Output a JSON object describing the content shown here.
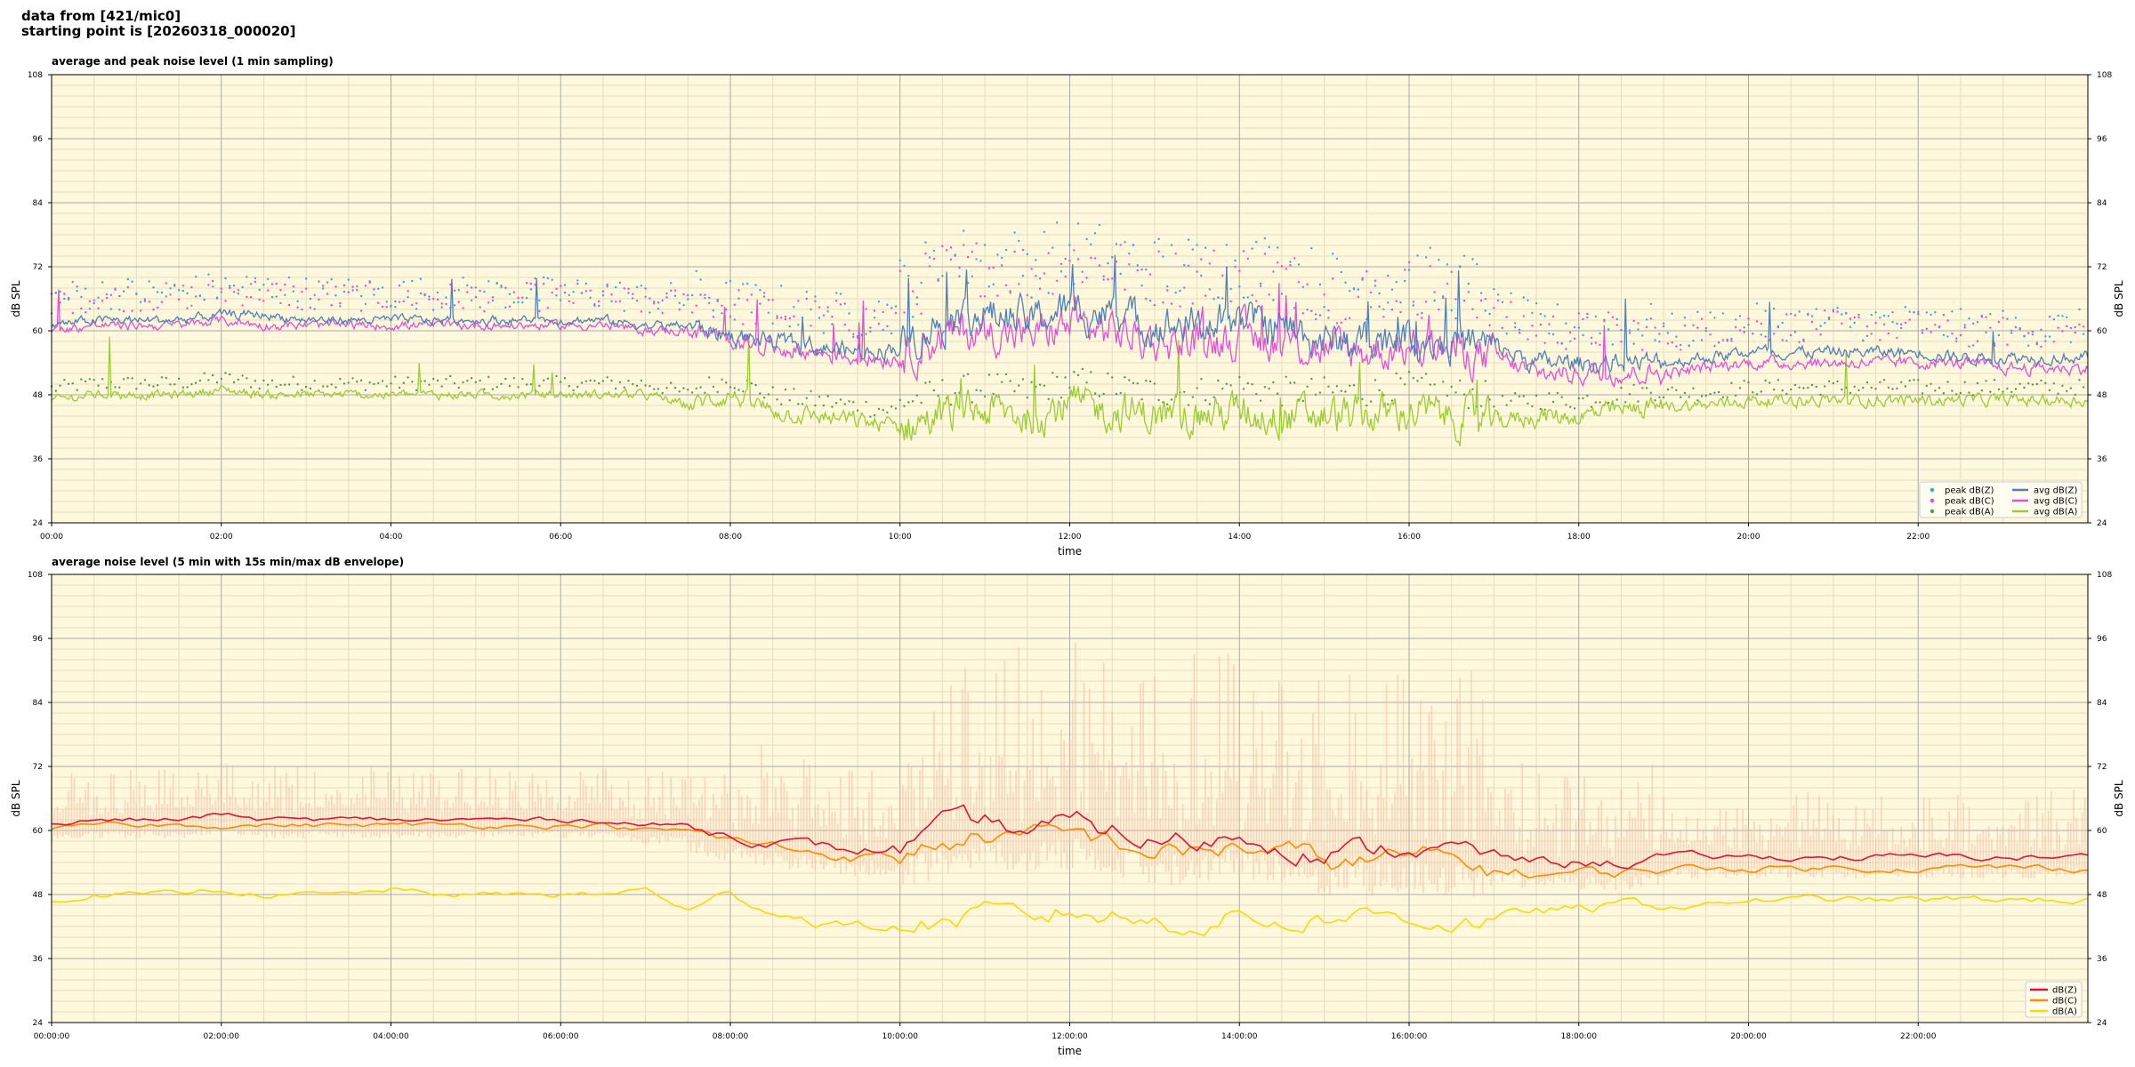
{
  "header": {
    "line1": "data from [421/mic0]",
    "line2": "starting point is [20260318_000020]"
  },
  "colors": {
    "plot_bg": "#fff8dc",
    "grid_major": "#aaaaaa",
    "grid_minor": "#e6dcc0",
    "z": "#4f81b8",
    "c": "#e24fd8",
    "a": "#9acd32",
    "peak_z": "#2aa9e0",
    "peak_c": "#ff3fd0",
    "peak_a": "#4e9a4e",
    "lower_z": "#dc143c",
    "lower_c": "#ff8c00",
    "lower_a": "#ffd700",
    "envelope": "#f4b8a0"
  },
  "chart_data": [
    {
      "type": "line",
      "title": "average and peak noise level (1 min sampling)",
      "xlabel": "time",
      "ylabel": "dB SPL",
      "ylim": [
        24,
        108
      ],
      "xlim_hours": [
        0,
        24
      ],
      "y_ticks": [
        "24",
        "36",
        "48",
        "60",
        "72",
        "84",
        "96",
        "108"
      ],
      "x_ticks": [
        "00:00",
        "02:00",
        "04:00",
        "06:00",
        "08:00",
        "10:00",
        "12:00",
        "14:00",
        "16:00",
        "18:00",
        "20:00",
        "22:00"
      ],
      "grid": true,
      "legend_position": "lower-right",
      "legend": [
        "peak dB(Z)",
        "peak dB(C)",
        "peak dB(A)",
        "avg dB(Z)",
        "avg dB(C)",
        "avg dB(A)"
      ],
      "series": [
        {
          "name": "avg dB(Z)",
          "color_key": "z",
          "x": [
            0,
            0.5,
            1,
            1.5,
            2,
            2.5,
            3,
            3.5,
            4,
            4.5,
            5,
            5.5,
            6,
            6.5,
            7,
            7.5,
            8,
            8.5,
            9,
            9.5,
            10,
            10.5,
            11,
            11.5,
            12,
            12.5,
            13,
            13.5,
            14,
            14.5,
            15,
            15.5,
            16,
            16.5,
            17,
            17.5,
            18,
            18.5,
            19,
            19.5,
            20,
            20.5,
            21,
            21.5,
            22,
            22.5,
            23,
            23.5,
            24
          ],
          "y": [
            61,
            62,
            62,
            62,
            63,
            63,
            62,
            62,
            62,
            62,
            62,
            62,
            62,
            62,
            61,
            61,
            59,
            58,
            57,
            56,
            57,
            62,
            63,
            62,
            64,
            63,
            61,
            61,
            62,
            61,
            58,
            58,
            59,
            58,
            57,
            54,
            54,
            54,
            54,
            55,
            56,
            56,
            56,
            56,
            56,
            55,
            55,
            55,
            55
          ]
        },
        {
          "name": "avg dB(C)",
          "color_key": "c",
          "x": [
            0,
            0.5,
            1,
            1.5,
            2,
            2.5,
            3,
            3.5,
            4,
            4.5,
            5,
            5.5,
            6,
            6.5,
            7,
            7.5,
            8,
            8.5,
            9,
            9.5,
            10,
            10.5,
            11,
            11.5,
            12,
            12.5,
            13,
            13.5,
            14,
            14.5,
            15,
            15.5,
            16,
            16.5,
            17,
            17.5,
            18,
            18.5,
            19,
            19.5,
            20,
            20.5,
            21,
            21.5,
            22,
            22.5,
            23,
            23.5,
            24
          ],
          "y": [
            60,
            61,
            61,
            61,
            62,
            61,
            61,
            61,
            61,
            61,
            61,
            61,
            61,
            61,
            60,
            60,
            58,
            57,
            56,
            55,
            55,
            59,
            60,
            59,
            61,
            60,
            58,
            58,
            59,
            58,
            56,
            56,
            57,
            56,
            55,
            52,
            52,
            52,
            52,
            53,
            54,
            54,
            54,
            54,
            54,
            54,
            53,
            53,
            53
          ]
        },
        {
          "name": "avg dB(A)",
          "color_key": "a",
          "x": [
            0,
            0.5,
            1,
            1.5,
            2,
            2.5,
            3,
            3.5,
            4,
            4.5,
            5,
            5.5,
            6,
            6.5,
            7,
            7.5,
            8,
            8.5,
            9,
            9.5,
            10,
            10.5,
            11,
            11.5,
            12,
            12.5,
            13,
            13.5,
            14,
            14.5,
            15,
            15.5,
            16,
            16.5,
            17,
            17.5,
            18,
            18.5,
            19,
            19.5,
            20,
            20.5,
            21,
            21.5,
            22,
            22.5,
            23,
            23.5,
            24
          ],
          "y": [
            47,
            48,
            48,
            48,
            49,
            48,
            48,
            48,
            48,
            48,
            48,
            48,
            48,
            48,
            48,
            46,
            48,
            45,
            44,
            43,
            42,
            44,
            45,
            44,
            46,
            45,
            44,
            44,
            45,
            44,
            44,
            44,
            45,
            44,
            43,
            44,
            44,
            45,
            46,
            46,
            47,
            47,
            47,
            47,
            47,
            47,
            47,
            47,
            47
          ]
        }
      ]
    },
    {
      "type": "line",
      "title": "average noise level (5 min with 15s min/max dB envelope)",
      "xlabel": "time",
      "ylabel": "dB SPL",
      "ylim": [
        24,
        108
      ],
      "xlim_hours": [
        0,
        24
      ],
      "y_ticks": [
        "24",
        "36",
        "48",
        "60",
        "72",
        "84",
        "96",
        "108"
      ],
      "x_ticks": [
        "00:00:00",
        "02:00:00",
        "04:00:00",
        "06:00:00",
        "08:00:00",
        "10:00:00",
        "12:00:00",
        "14:00:00",
        "16:00:00",
        "18:00:00",
        "20:00:00",
        "22:00:00"
      ],
      "grid": true,
      "legend_position": "lower-right",
      "legend": [
        "dB(Z)",
        "dB(C)",
        "dB(A)"
      ],
      "series": [
        {
          "name": "dB(Z)",
          "color_key": "lower_z",
          "x": [
            0,
            0.5,
            1,
            1.5,
            2,
            2.5,
            3,
            3.5,
            4,
            4.5,
            5,
            5.5,
            6,
            6.5,
            7,
            7.5,
            8,
            8.5,
            9,
            9.5,
            10,
            10.5,
            11,
            11.5,
            12,
            12.5,
            13,
            13.5,
            14,
            14.5,
            15,
            15.5,
            16,
            16.5,
            17,
            17.5,
            18,
            18.5,
            19,
            19.5,
            20,
            20.5,
            21,
            21.5,
            22,
            22.5,
            23,
            23.5,
            24
          ],
          "y": [
            61,
            62,
            62,
            62,
            63,
            62,
            62,
            62,
            62,
            62,
            62,
            62,
            62,
            62,
            61,
            61,
            59,
            58,
            57,
            56,
            57,
            60,
            61,
            60,
            61,
            60,
            58,
            58,
            59,
            58,
            56,
            56,
            57,
            56,
            55,
            54,
            54,
            54,
            55,
            55,
            55,
            55,
            55,
            55,
            55,
            55,
            55,
            55,
            55
          ]
        },
        {
          "name": "dB(C)",
          "color_key": "lower_c",
          "x": [
            0,
            0.5,
            1,
            1.5,
            2,
            2.5,
            3,
            3.5,
            4,
            4.5,
            5,
            5.5,
            6,
            6.5,
            7,
            7.5,
            8,
            8.5,
            9,
            9.5,
            10,
            10.5,
            11,
            11.5,
            12,
            12.5,
            13,
            13.5,
            14,
            14.5,
            15,
            15.5,
            16,
            16.5,
            17,
            17.5,
            18,
            18.5,
            19,
            19.5,
            20,
            20.5,
            21,
            21.5,
            22,
            22.5,
            23,
            23.5,
            24
          ],
          "y": [
            60,
            61,
            61,
            61,
            61,
            61,
            61,
            61,
            61,
            61,
            61,
            61,
            61,
            61,
            60,
            60,
            58,
            57,
            56,
            55,
            55,
            58,
            59,
            58,
            59,
            58,
            56,
            56,
            57,
            56,
            54,
            54,
            55,
            54,
            53,
            52,
            52,
            52,
            53,
            53,
            53,
            53,
            53,
            53,
            53,
            53,
            53,
            53,
            53
          ]
        },
        {
          "name": "dB(A)",
          "color_key": "lower_a",
          "x": [
            0,
            0.5,
            1,
            1.5,
            2,
            2.5,
            3,
            3.5,
            4,
            4.5,
            5,
            5.5,
            6,
            6.5,
            7,
            7.5,
            8,
            8.5,
            9,
            9.5,
            10,
            10.5,
            11,
            11.5,
            12,
            12.5,
            13,
            13.5,
            14,
            14.5,
            15,
            15.5,
            16,
            16.5,
            17,
            17.5,
            18,
            18.5,
            19,
            19.5,
            20,
            20.5,
            21,
            21.5,
            22,
            22.5,
            23,
            23.5,
            24
          ],
          "y": [
            47,
            48,
            48,
            48,
            49,
            48,
            48,
            48,
            49,
            48,
            48,
            48,
            48,
            48,
            49,
            45,
            48,
            45,
            43,
            42,
            42,
            43,
            44,
            43,
            45,
            44,
            43,
            43,
            44,
            43,
            44,
            44,
            44,
            43,
            43,
            45,
            45,
            46,
            46,
            46,
            47,
            47,
            47,
            47,
            47,
            47,
            47,
            47,
            47
          ]
        }
      ]
    }
  ]
}
